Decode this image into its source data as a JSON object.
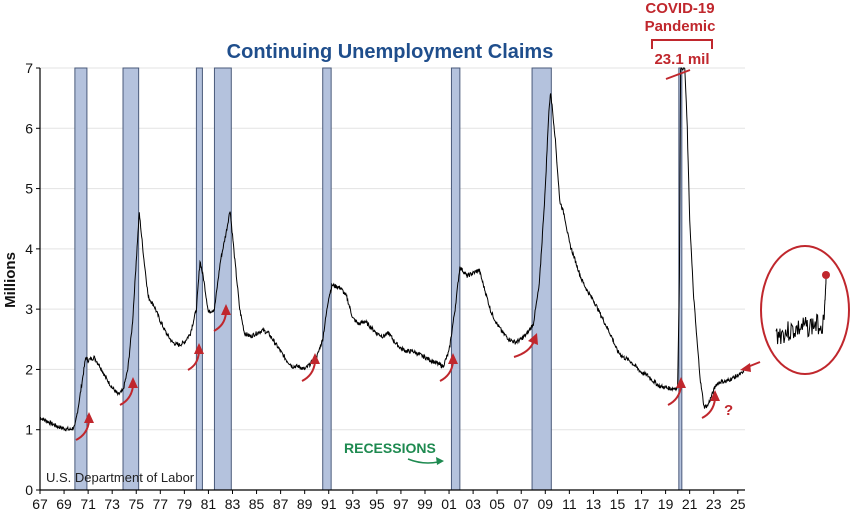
{
  "chart_data": {
    "type": "line",
    "title": "Continuing Unemployment Claims",
    "ylabel": "Millions",
    "xlabel": "",
    "source": "U.S. Department of Labor",
    "ylim": [
      0,
      7
    ],
    "xlim": [
      1967,
      2025.6
    ],
    "grid": true,
    "y_ticks": [
      0,
      1,
      2,
      3,
      4,
      5,
      6,
      7
    ],
    "x_ticks": [
      "67",
      "69",
      "71",
      "73",
      "75",
      "77",
      "79",
      "81",
      "83",
      "85",
      "87",
      "89",
      "91",
      "93",
      "95",
      "97",
      "99",
      "01",
      "03",
      "05",
      "07",
      "09",
      "11",
      "13",
      "15",
      "17",
      "19",
      "21",
      "23",
      "25"
    ],
    "recessions": [
      [
        1969.9,
        1970.9
      ],
      [
        1973.9,
        1975.2
      ],
      [
        1980.0,
        1980.5
      ],
      [
        1981.5,
        1982.9
      ],
      [
        1990.5,
        1991.2
      ],
      [
        2001.2,
        2001.9
      ],
      [
        2007.9,
        2009.5
      ],
      [
        2020.1,
        2020.35
      ]
    ],
    "series": [
      {
        "values": [
          [
            1967.0,
            1.2
          ],
          [
            1967.5,
            1.15
          ],
          [
            1968.0,
            1.1
          ],
          [
            1968.5,
            1.05
          ],
          [
            1969.0,
            1.02
          ],
          [
            1969.5,
            1.0
          ],
          [
            1969.9,
            1.05
          ],
          [
            1970.2,
            1.4
          ],
          [
            1970.5,
            1.8
          ],
          [
            1970.8,
            2.2
          ],
          [
            1971.0,
            2.15
          ],
          [
            1971.5,
            2.2
          ],
          [
            1972.0,
            2.05
          ],
          [
            1972.5,
            1.85
          ],
          [
            1973.0,
            1.7
          ],
          [
            1973.5,
            1.58
          ],
          [
            1973.9,
            1.65
          ],
          [
            1974.3,
            2.0
          ],
          [
            1974.7,
            2.8
          ],
          [
            1975.0,
            3.8
          ],
          [
            1975.25,
            4.6
          ],
          [
            1975.6,
            3.9
          ],
          [
            1976.0,
            3.2
          ],
          [
            1976.5,
            3.05
          ],
          [
            1977.0,
            2.8
          ],
          [
            1977.5,
            2.6
          ],
          [
            1978.0,
            2.45
          ],
          [
            1978.5,
            2.4
          ],
          [
            1979.0,
            2.45
          ],
          [
            1979.5,
            2.6
          ],
          [
            1980.0,
            3.0
          ],
          [
            1980.3,
            3.8
          ],
          [
            1980.6,
            3.5
          ],
          [
            1981.0,
            2.95
          ],
          [
            1981.5,
            3.0
          ],
          [
            1982.0,
            3.8
          ],
          [
            1982.5,
            4.3
          ],
          [
            1982.8,
            4.65
          ],
          [
            1983.2,
            3.8
          ],
          [
            1983.6,
            3.0
          ],
          [
            1984.0,
            2.6
          ],
          [
            1984.5,
            2.55
          ],
          [
            1985.0,
            2.6
          ],
          [
            1985.5,
            2.65
          ],
          [
            1986.0,
            2.6
          ],
          [
            1986.5,
            2.45
          ],
          [
            1987.0,
            2.3
          ],
          [
            1987.5,
            2.15
          ],
          [
            1988.0,
            2.05
          ],
          [
            1988.5,
            2.05
          ],
          [
            1989.0,
            2.0
          ],
          [
            1989.5,
            2.1
          ],
          [
            1990.0,
            2.2
          ],
          [
            1990.5,
            2.5
          ],
          [
            1991.0,
            3.2
          ],
          [
            1991.3,
            3.4
          ],
          [
            1992.0,
            3.35
          ],
          [
            1992.5,
            3.2
          ],
          [
            1993.0,
            2.85
          ],
          [
            1993.5,
            2.75
          ],
          [
            1994.0,
            2.8
          ],
          [
            1994.5,
            2.7
          ],
          [
            1995.0,
            2.6
          ],
          [
            1995.5,
            2.55
          ],
          [
            1996.0,
            2.6
          ],
          [
            1996.5,
            2.45
          ],
          [
            1997.0,
            2.35
          ],
          [
            1997.5,
            2.3
          ],
          [
            1998.0,
            2.3
          ],
          [
            1998.5,
            2.25
          ],
          [
            1999.0,
            2.2
          ],
          [
            1999.5,
            2.15
          ],
          [
            2000.0,
            2.1
          ],
          [
            2000.5,
            2.05
          ],
          [
            2001.0,
            2.3
          ],
          [
            2001.5,
            3.0
          ],
          [
            2001.9,
            3.7
          ],
          [
            2002.5,
            3.55
          ],
          [
            2003.0,
            3.6
          ],
          [
            2003.5,
            3.65
          ],
          [
            2004.0,
            3.3
          ],
          [
            2004.5,
            2.95
          ],
          [
            2005.0,
            2.75
          ],
          [
            2005.5,
            2.6
          ],
          [
            2006.0,
            2.5
          ],
          [
            2006.5,
            2.45
          ],
          [
            2007.0,
            2.5
          ],
          [
            2007.5,
            2.6
          ],
          [
            2008.0,
            2.75
          ],
          [
            2008.5,
            3.4
          ],
          [
            2009.0,
            5.0
          ],
          [
            2009.3,
            6.3
          ],
          [
            2009.45,
            6.6
          ],
          [
            2009.8,
            5.9
          ],
          [
            2010.2,
            4.8
          ],
          [
            2010.6,
            4.55
          ],
          [
            2011.0,
            4.1
          ],
          [
            2011.5,
            3.8
          ],
          [
            2012.0,
            3.5
          ],
          [
            2012.5,
            3.3
          ],
          [
            2013.0,
            3.15
          ],
          [
            2013.5,
            2.95
          ],
          [
            2014.0,
            2.75
          ],
          [
            2014.5,
            2.55
          ],
          [
            2015.0,
            2.3
          ],
          [
            2015.5,
            2.2
          ],
          [
            2016.0,
            2.15
          ],
          [
            2016.5,
            2.05
          ],
          [
            2017.0,
            1.95
          ],
          [
            2017.5,
            1.9
          ],
          [
            2018.0,
            1.8
          ],
          [
            2018.5,
            1.72
          ],
          [
            2019.0,
            1.7
          ],
          [
            2019.5,
            1.68
          ],
          [
            2020.0,
            1.7
          ],
          [
            2020.15,
            3.5
          ],
          [
            2020.25,
            7.0
          ],
          [
            2020.6,
            7.0
          ],
          [
            2020.8,
            6.0
          ],
          [
            2021.0,
            4.5
          ],
          [
            2021.3,
            3.3
          ],
          [
            2021.6,
            2.5
          ],
          [
            2021.9,
            1.8
          ],
          [
            2022.2,
            1.38
          ],
          [
            2022.5,
            1.4
          ],
          [
            2022.8,
            1.55
          ],
          [
            2023.2,
            1.75
          ],
          [
            2023.6,
            1.8
          ],
          [
            2024.0,
            1.8
          ],
          [
            2024.5,
            1.85
          ],
          [
            2025.0,
            1.9
          ],
          [
            2025.5,
            1.95
          ]
        ]
      }
    ],
    "annotations": {
      "covid_line1": "COVID-19",
      "covid_line2": "Pandemic",
      "covid_peak": "23.1 mil",
      "recessions_label": "RECESSIONS",
      "question_mark": "?"
    },
    "colors": {
      "title": "#1f4e8c",
      "recession_fill": "#b4c2dd",
      "recession_stroke": "#4a5a7a",
      "line": "#000000",
      "accent": "#c0272d",
      "recession_label": "#1e8a50",
      "grid": "#e3e3e3"
    }
  }
}
